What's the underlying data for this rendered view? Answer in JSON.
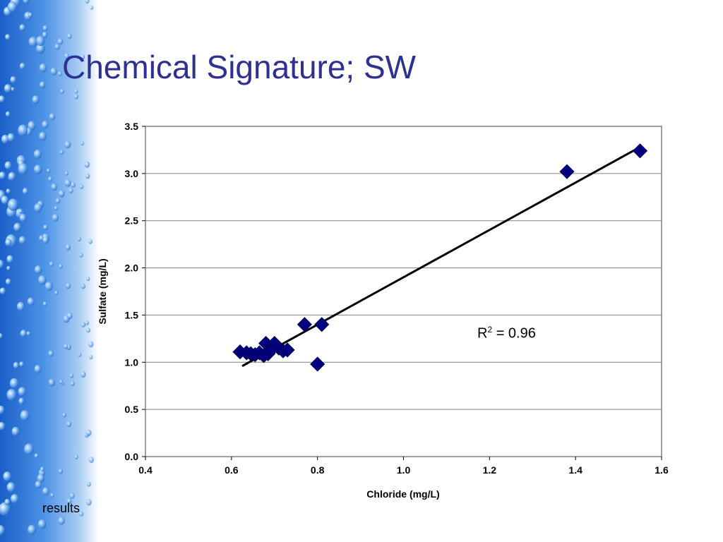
{
  "slide": {
    "title": "Chemical Signature; SW",
    "footer": "results"
  },
  "colors": {
    "title": "#2e3192",
    "marker": "#000080",
    "trendline": "#000000",
    "grid": "#808080"
  },
  "chart_data": {
    "type": "scatter",
    "xlabel": "Chloride (mg/L)",
    "ylabel": "Sulfate (mg/L)",
    "xlim": [
      0.4,
      1.6
    ],
    "ylim": [
      0.0,
      3.5
    ],
    "xticks": [
      0.4,
      0.6,
      0.8,
      1.0,
      1.2,
      1.4,
      1.6
    ],
    "yticks": [
      0.0,
      0.5,
      1.0,
      1.5,
      2.0,
      2.5,
      3.0,
      3.5
    ],
    "xtick_labels": [
      "0.4",
      "0.6",
      "0.8",
      "1.0",
      "1.2",
      "1.4",
      "1.6"
    ],
    "ytick_labels": [
      "0.0",
      "0.5",
      "1.0",
      "1.5",
      "2.0",
      "2.5",
      "3.0",
      "3.5"
    ],
    "grid": "horizontal",
    "points": [
      {
        "x": 0.62,
        "y": 1.11
      },
      {
        "x": 0.635,
        "y": 1.1
      },
      {
        "x": 0.645,
        "y": 1.09
      },
      {
        "x": 0.655,
        "y": 1.08
      },
      {
        "x": 0.665,
        "y": 1.1
      },
      {
        "x": 0.675,
        "y": 1.07
      },
      {
        "x": 0.68,
        "y": 1.2
      },
      {
        "x": 0.685,
        "y": 1.09
      },
      {
        "x": 0.69,
        "y": 1.12
      },
      {
        "x": 0.7,
        "y": 1.2
      },
      {
        "x": 0.71,
        "y": 1.15
      },
      {
        "x": 0.72,
        "y": 1.12
      },
      {
        "x": 0.73,
        "y": 1.13
      },
      {
        "x": 0.77,
        "y": 1.4
      },
      {
        "x": 0.8,
        "y": 0.98
      },
      {
        "x": 0.81,
        "y": 1.4
      },
      {
        "x": 1.38,
        "y": 3.02
      },
      {
        "x": 1.55,
        "y": 3.24
      }
    ],
    "trendline": {
      "type": "linear",
      "x": [
        0.625,
        1.55
      ],
      "y": [
        0.96,
        3.28
      ]
    },
    "annotation": {
      "text_prefix": "R",
      "superscript": "2",
      "text_suffix": " = 0.96"
    }
  }
}
